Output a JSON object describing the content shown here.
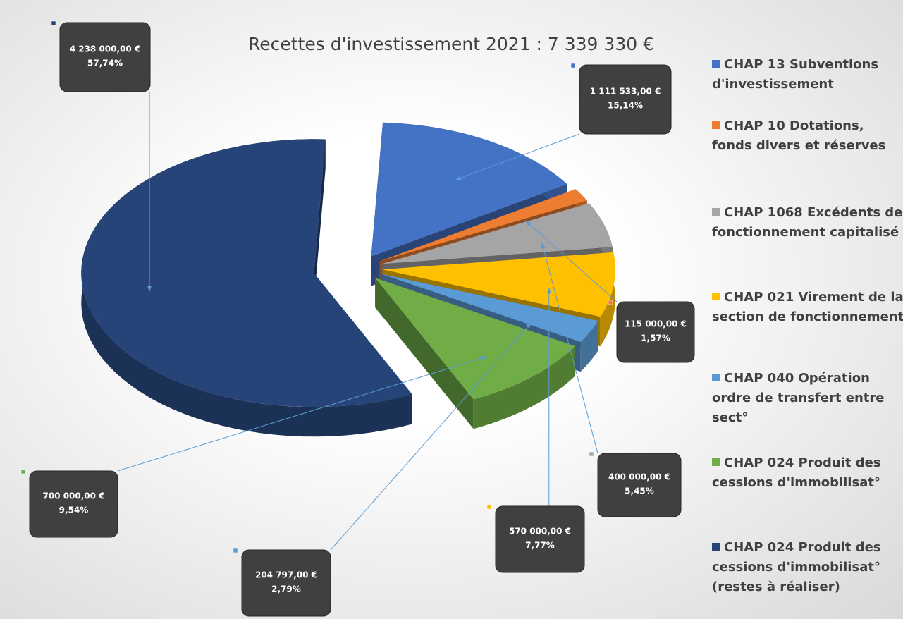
{
  "chart_data": {
    "type": "pie3d",
    "title": "Recettes d'investissement 2021 : 7 339 330 €",
    "categories": [
      "CHAP 13 Subventions d'investissement",
      "CHAP 10 Dotations, fonds divers et réserves",
      "CHAP 1068 Excédents de fonctionnement capitalisé",
      "CHAP 021 Virement de la section de fonctionnement",
      "CHAP 040 Opération ordre de transfert entre sect°",
      "CHAP 024 Produit des cessions d'immobilisat°",
      "CHAP 024 Produit des cessions d'immobilisat°(restes à réaliser)"
    ],
    "values": [
      1111533,
      115000,
      400000,
      570000,
      204797,
      700000,
      4238000
    ],
    "value_labels": [
      "1 111 533,00 €",
      "115 000,00 €",
      "400 000,00 €",
      "570 000,00 €",
      "204 797,00 €",
      "700 000,00 €",
      "4 238 000,00 €"
    ],
    "percent_labels": [
      "15,14%",
      "1,57%",
      "5,45%",
      "7,77%",
      "2,79%",
      "9,54%",
      "57,74%"
    ],
    "colors": [
      "#4472c4",
      "#ed7d31",
      "#a5a5a5",
      "#ffc000",
      "#5b9bd5",
      "#70ad47",
      "#264478"
    ],
    "legend": "right"
  }
}
